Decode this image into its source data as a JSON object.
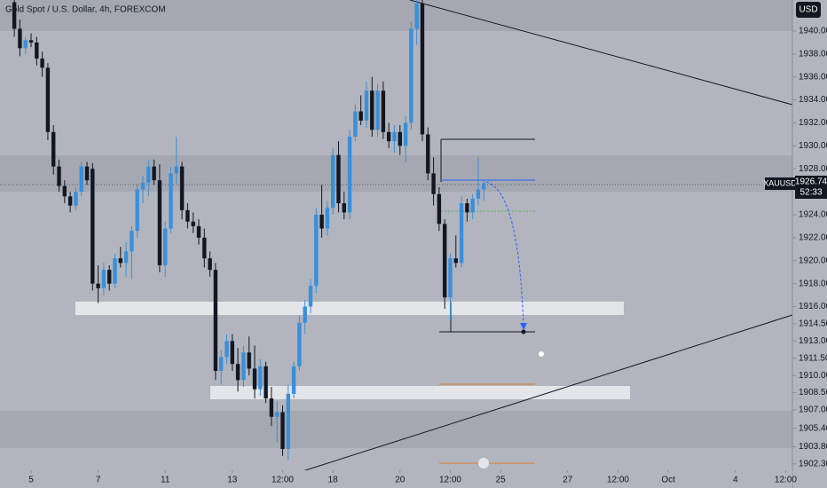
{
  "chart_data": {
    "type": "candlestick",
    "title": "Gold Spot / U.S. Dollar, 4h, FOREXCOM",
    "symbol": "XAUUSD",
    "currency_button": "USD",
    "last_price": {
      "value": 1926.74,
      "label": "1926.74"
    },
    "countdown": "52:33",
    "up_color": "#3a8fd9",
    "down_color": "#131722",
    "xlim": [
      -5.56,
      136.2
    ],
    "ylim": [
      1900.2,
      1942.7
    ],
    "xticks": [
      {
        "value": 0,
        "label": "5"
      },
      {
        "value": 12,
        "label": "7"
      },
      {
        "value": 24,
        "label": "11"
      },
      {
        "value": 36,
        "label": "13"
      },
      {
        "value": 45,
        "label": "12:00"
      },
      {
        "value": 54,
        "label": "18"
      },
      {
        "value": 66,
        "label": "20"
      },
      {
        "value": 75,
        "label": "12:00"
      },
      {
        "value": 84,
        "label": "25"
      },
      {
        "value": 96,
        "label": "27"
      },
      {
        "value": 105,
        "label": "12:00"
      },
      {
        "value": 114,
        "label": "Oct"
      },
      {
        "value": 126,
        "label": "4"
      },
      {
        "value": 135,
        "label": "12:00"
      }
    ],
    "yticks": [
      {
        "value": 1940,
        "label": "1940.00"
      },
      {
        "value": 1938,
        "label": "1938.00"
      },
      {
        "value": 1936,
        "label": "1936.00"
      },
      {
        "value": 1934,
        "label": "1934.00"
      },
      {
        "value": 1932,
        "label": "1932.00"
      },
      {
        "value": 1930,
        "label": "1930.00"
      },
      {
        "value": 1928,
        "label": "1928.00"
      },
      {
        "value": 1924,
        "label": "1924.00"
      },
      {
        "value": 1922,
        "label": "1922.00"
      },
      {
        "value": 1920,
        "label": "1920.00"
      },
      {
        "value": 1918,
        "label": "1918.00"
      },
      {
        "value": 1916,
        "label": "1916.00"
      },
      {
        "value": 1914.5,
        "label": "1914.50"
      },
      {
        "value": 1913,
        "label": "1913.00"
      },
      {
        "value": 1911.5,
        "label": "1911.50"
      },
      {
        "value": 1910,
        "label": "1910.00"
      },
      {
        "value": 1908.5,
        "label": "1908.50"
      },
      {
        "value": 1907,
        "label": "1907.00"
      },
      {
        "value": 1905.4,
        "label": "1905.40"
      },
      {
        "value": 1903.8,
        "label": "1903.80"
      },
      {
        "value": 1902.3,
        "label": "1902.30"
      }
    ],
    "x": [
      -3,
      -2,
      -1,
      0,
      1,
      2,
      3,
      4,
      5,
      6,
      7,
      8,
      9,
      10,
      11,
      12,
      13,
      14,
      15,
      16,
      17,
      18,
      19,
      20,
      21,
      22,
      23,
      24,
      25,
      26,
      27,
      28,
      29,
      30,
      31,
      32,
      33,
      34,
      35,
      36,
      37,
      38,
      39,
      40,
      41,
      42,
      43,
      44,
      45,
      46,
      47,
      48,
      49,
      50,
      51,
      52,
      53,
      54,
      55,
      56,
      57,
      58,
      59,
      60,
      61,
      62,
      63,
      64,
      65,
      66,
      67,
      68,
      69,
      70,
      71,
      72,
      73,
      74,
      75,
      76,
      77,
      78,
      79,
      80,
      81
    ],
    "open": [
      1942.5,
      1940.2,
      1938.5,
      1939.2,
      1939.0,
      1937.6,
      1936.8,
      1931.2,
      1928.2,
      1926.5,
      1925.6,
      1924.8,
      1926,
      1928.2,
      1928,
      1918,
      1917.6,
      1919.2,
      1918,
      1920.2,
      1919.8,
      1920.8,
      1922.6,
      1926.2,
      1926.8,
      1928.2,
      1927,
      1919.6,
      1922.8,
      1927.6,
      1928.2,
      1924.4,
      1923.4,
      1923,
      1922,
      1920.2,
      1919.2,
      1910.4,
      1911.6,
      1913,
      1911,
      1909.6,
      1912,
      1910.6,
      1908.8,
      1910.8,
      1908,
      1906.4,
      1906.8,
      1903.6,
      1908.4,
      1910.8,
      1914.6,
      1916,
      1917.8,
      1924,
      1922.8,
      1924.6,
      1929.2,
      1925,
      1924.2,
      1930.8,
      1933,
      1932.2,
      1934.8,
      1931.4,
      1934.8,
      1931.2,
      1930.4,
      1931.2,
      1930,
      1932,
      1940.2,
      1942.4,
      1931,
      1927.6,
      1925.8,
      1923.2,
      1916.8,
      1920.2,
      1919.8,
      1925,
      1924.2,
      1925.4,
      1926.2
    ],
    "high": [
      1943,
      1941,
      1939.5,
      1939.8,
      1939.5,
      1938.2,
      1937.2,
      1931.8,
      1928.8,
      1927,
      1926,
      1926.4,
      1928.6,
      1928.6,
      1928.5,
      1919.6,
      1919.8,
      1919.6,
      1920.6,
      1921.2,
      1921.6,
      1923,
      1926.6,
      1927.4,
      1928.8,
      1928.8,
      1928.4,
      1923.4,
      1928.2,
      1930.8,
      1928.6,
      1925,
      1924.2,
      1923.6,
      1922.8,
      1920.8,
      1919.8,
      1912.2,
      1913.6,
      1913.6,
      1912.4,
      1912.6,
      1913.4,
      1912.6,
      1911.4,
      1911.2,
      1909,
      1907.8,
      1907.4,
      1909.2,
      1911.2,
      1915.2,
      1916.6,
      1918.4,
      1924.6,
      1926.6,
      1925.2,
      1929.8,
      1930.4,
      1926,
      1931.4,
      1933.6,
      1934.4,
      1935.6,
      1936,
      1935.4,
      1935.6,
      1932,
      1931.8,
      1931.8,
      1932.6,
      1940.8,
      1942.8,
      1942.8,
      1931.6,
      1929,
      1926.4,
      1923.6,
      1920.6,
      1922.2,
      1925.6,
      1925.4,
      1925.8,
      1929,
      1927
    ],
    "low": [
      1939.5,
      1937.8,
      1938,
      1938.6,
      1937,
      1936,
      1930.5,
      1927.5,
      1926,
      1925,
      1924.2,
      1924.4,
      1925.6,
      1926.6,
      1917.4,
      1916.3,
      1917,
      1917.4,
      1917.6,
      1919.4,
      1918.6,
      1918.4,
      1922,
      1925,
      1925.6,
      1926.6,
      1919,
      1918.6,
      1922.4,
      1926.6,
      1923.6,
      1922.8,
      1922.4,
      1921.4,
      1919.4,
      1918.6,
      1909.6,
      1909.2,
      1911,
      1910.4,
      1908.6,
      1909,
      1910,
      1908,
      1908.2,
      1907.6,
      1905.6,
      1904.2,
      1903,
      1902.6,
      1908,
      1910.4,
      1913.6,
      1915.4,
      1917.2,
      1922,
      1922.2,
      1924,
      1924.2,
      1923.6,
      1923.6,
      1930.4,
      1931.8,
      1931.6,
      1930.8,
      1930.8,
      1930.6,
      1929.8,
      1929.4,
      1929.2,
      1928.6,
      1931.4,
      1938.8,
      1930.4,
      1927,
      1924.8,
      1922.6,
      1915.8,
      1914.8,
      1919.4,
      1919.4,
      1923.4,
      1923.6,
      1924.8,
      1925.2
    ],
    "close": [
      1940.2,
      1938.5,
      1939.2,
      1939.0,
      1937.6,
      1936.8,
      1931.2,
      1928.2,
      1926.5,
      1925.6,
      1924.8,
      1926,
      1928.2,
      1927,
      1918,
      1917.6,
      1919.2,
      1918,
      1920.2,
      1919.8,
      1920.8,
      1922.6,
      1926.2,
      1926.8,
      1928.2,
      1927,
      1919.6,
      1922.8,
      1927.6,
      1928.2,
      1924.4,
      1923.4,
      1923,
      1922,
      1920.2,
      1919.2,
      1910.4,
      1911.6,
      1913,
      1911,
      1909.6,
      1912,
      1910.6,
      1908.8,
      1910.8,
      1908,
      1906.4,
      1906.8,
      1903.6,
      1908.4,
      1910.8,
      1914.6,
      1916,
      1917.8,
      1924,
      1922.8,
      1924.6,
      1929.2,
      1925,
      1924.2,
      1930.8,
      1933,
      1932.2,
      1934.8,
      1931.4,
      1934.8,
      1931.2,
      1930.4,
      1931.2,
      1930,
      1932,
      1940.2,
      1942.4,
      1931,
      1927.6,
      1925.8,
      1923.2,
      1916.8,
      1920.2,
      1919.8,
      1925,
      1924.2,
      1925.4,
      1926.2,
      1926.74
    ]
  }
}
